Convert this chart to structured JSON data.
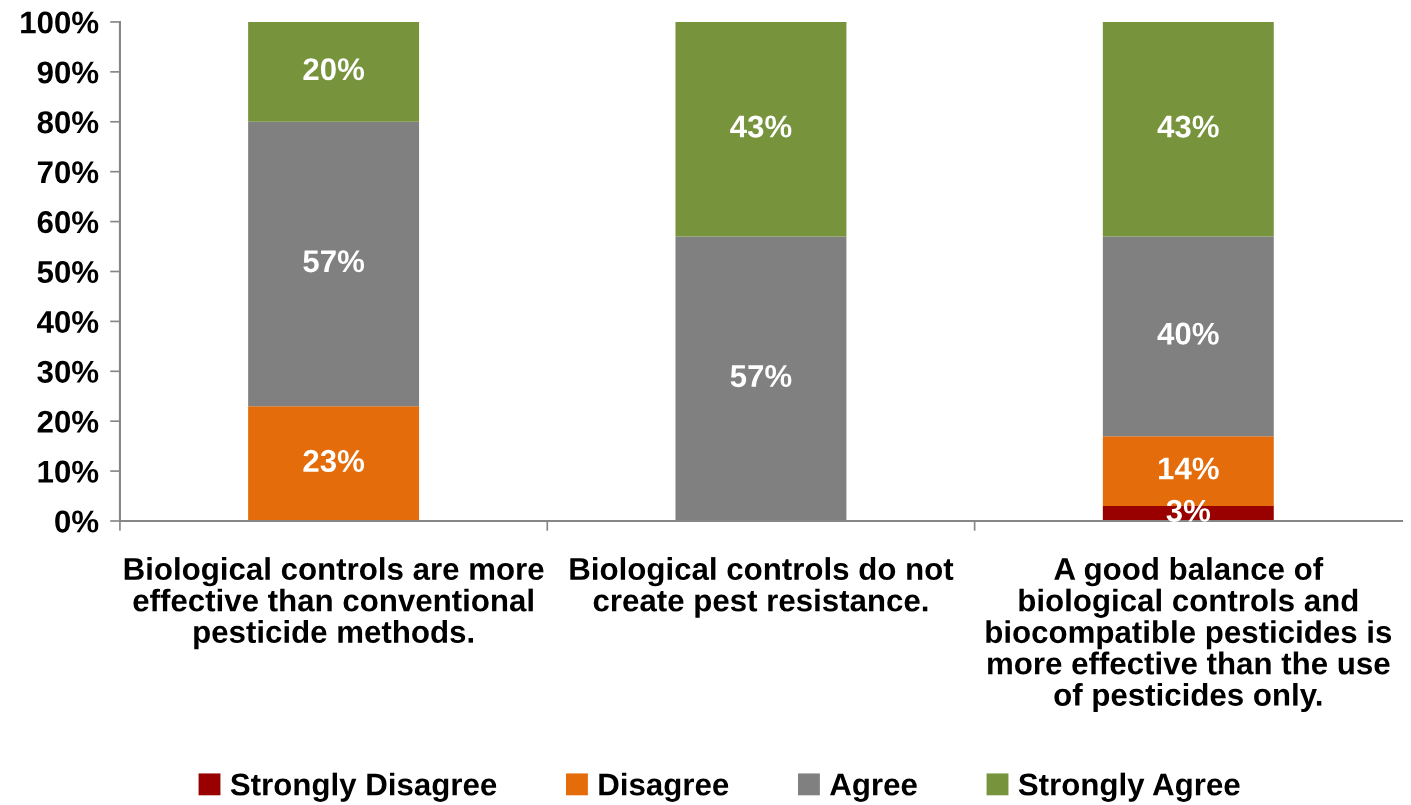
{
  "chart_data": {
    "type": "bar",
    "stacked": true,
    "categories": [
      "Biological controls are more\neffective than conventional\npesticide methods.",
      "Biological controls do not\ncreate pest resistance.",
      "A good balance of\nbiological controls and\nbiocompatible pesticides is\nmore effective than the use\nof pesticides only."
    ],
    "series": [
      {
        "name": "Strongly Disagree",
        "color": "#990000",
        "values": [
          0,
          0,
          3
        ],
        "value_labels": [
          null,
          null,
          "3%"
        ]
      },
      {
        "name": "Disagree",
        "color": "#e46c0a",
        "values": [
          23,
          0,
          14
        ],
        "value_labels": [
          "23%",
          null,
          "14%"
        ]
      },
      {
        "name": "Agree",
        "color": "#808080",
        "values": [
          57,
          57,
          40
        ],
        "value_labels": [
          "57%",
          "57%",
          "40%"
        ]
      },
      {
        "name": "Strongly Agree",
        "color": "#77933c",
        "values": [
          20,
          43,
          43
        ],
        "value_labels": [
          "20%",
          "43%",
          "43%"
        ]
      }
    ],
    "ylim": [
      0,
      100
    ],
    "yticks": [
      {
        "value": 0,
        "label": "0%"
      },
      {
        "value": 10,
        "label": "10%"
      },
      {
        "value": 20,
        "label": "20%"
      },
      {
        "value": 30,
        "label": "30%"
      },
      {
        "value": 40,
        "label": "40%"
      },
      {
        "value": 50,
        "label": "50%"
      },
      {
        "value": 60,
        "label": "60%"
      },
      {
        "value": 70,
        "label": "70%"
      },
      {
        "value": 80,
        "label": "80%"
      },
      {
        "value": 90,
        "label": "90%"
      },
      {
        "value": 100,
        "label": "100%"
      }
    ],
    "legend": "bottom"
  }
}
